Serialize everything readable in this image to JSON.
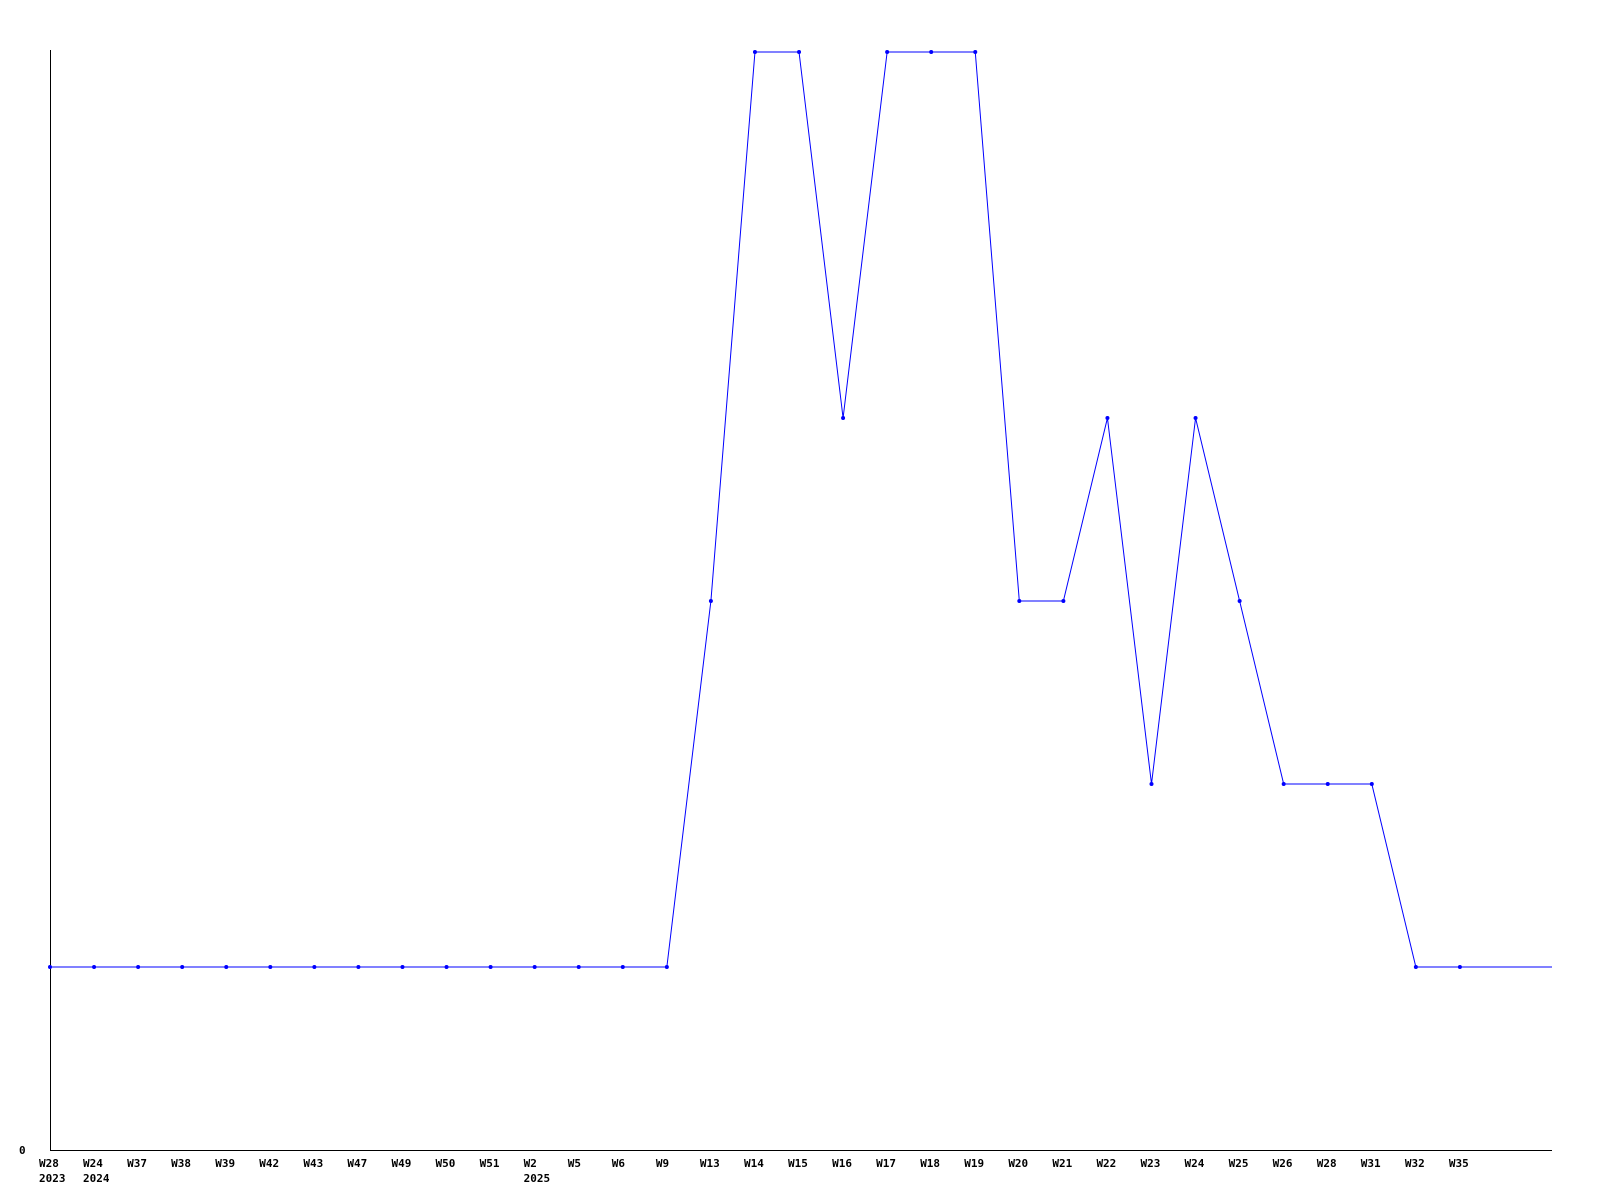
{
  "chart_data": {
    "type": "line",
    "title": "",
    "xlabel": "",
    "ylabel": "",
    "y_tick_labels": [
      "0"
    ],
    "ylim": [
      0,
      6
    ],
    "grid": false,
    "line_color": "#0000ff",
    "axis_color": "#000000",
    "categories": [
      {
        "label": "W28",
        "sub": "2023"
      },
      {
        "label": "W24",
        "sub": "2024"
      },
      {
        "label": "W37",
        "sub": ""
      },
      {
        "label": "W38",
        "sub": ""
      },
      {
        "label": "W39",
        "sub": ""
      },
      {
        "label": "W42",
        "sub": ""
      },
      {
        "label": "W43",
        "sub": ""
      },
      {
        "label": "W47",
        "sub": ""
      },
      {
        "label": "W49",
        "sub": ""
      },
      {
        "label": "W50",
        "sub": ""
      },
      {
        "label": "W51",
        "sub": ""
      },
      {
        "label": "W2",
        "sub": "2025"
      },
      {
        "label": "W5",
        "sub": ""
      },
      {
        "label": "W6",
        "sub": ""
      },
      {
        "label": "W9",
        "sub": ""
      },
      {
        "label": "W13",
        "sub": ""
      },
      {
        "label": "W14",
        "sub": ""
      },
      {
        "label": "W15",
        "sub": ""
      },
      {
        "label": "W16",
        "sub": ""
      },
      {
        "label": "W17",
        "sub": ""
      },
      {
        "label": "W18",
        "sub": ""
      },
      {
        "label": "W19",
        "sub": ""
      },
      {
        "label": "W20",
        "sub": ""
      },
      {
        "label": "W21",
        "sub": ""
      },
      {
        "label": "W22",
        "sub": ""
      },
      {
        "label": "W23",
        "sub": ""
      },
      {
        "label": "W24",
        "sub": ""
      },
      {
        "label": "W25",
        "sub": ""
      },
      {
        "label": "W26",
        "sub": ""
      },
      {
        "label": "W28",
        "sub": ""
      },
      {
        "label": "W31",
        "sub": ""
      },
      {
        "label": "W32",
        "sub": ""
      },
      {
        "label": "W35",
        "sub": ""
      }
    ],
    "values": [
      1,
      1,
      1,
      1,
      1,
      1,
      1,
      1,
      1,
      1,
      1,
      1,
      1,
      1,
      1,
      3,
      6,
      6,
      4,
      6,
      6,
      6,
      3,
      3,
      4,
      2,
      4,
      3,
      2,
      2,
      2,
      1,
      1
    ]
  }
}
